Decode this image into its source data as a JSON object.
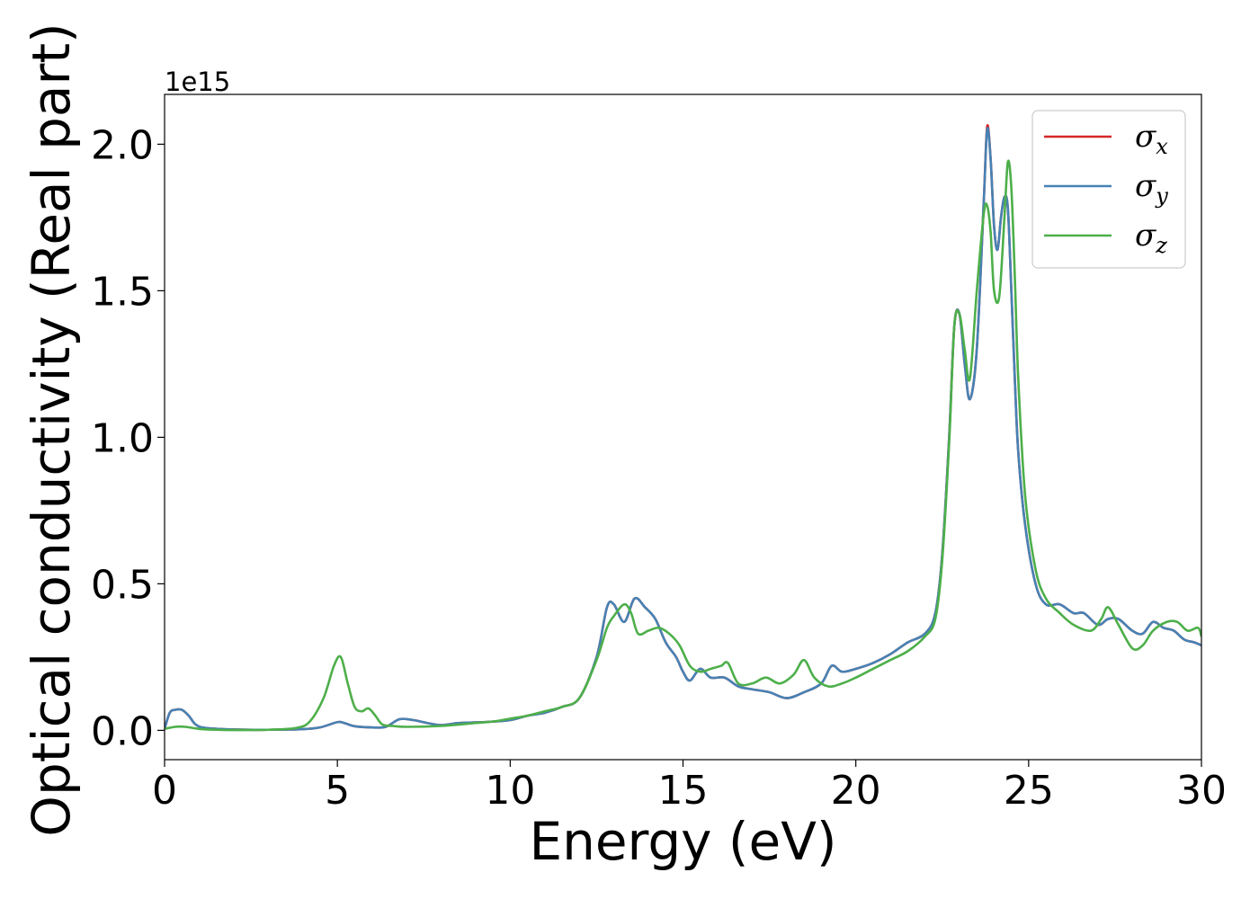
{
  "chart_data": {
    "type": "line",
    "xlabel": "Energy (eV)",
    "ylabel": "Optical conductivity (Real part)",
    "y_offset_text": "1e15",
    "xlim": [
      0,
      30
    ],
    "ylim": [
      -0.1,
      2.17
    ],
    "x_ticks": [
      0,
      5,
      10,
      15,
      20,
      25,
      30
    ],
    "x_tick_labels": [
      "0",
      "5",
      "10",
      "15",
      "20",
      "25",
      "30"
    ],
    "y_ticks": [
      0.0,
      0.5,
      1.0,
      1.5,
      2.0
    ],
    "y_tick_labels": [
      "0.0",
      "0.5",
      "1.0",
      "1.5",
      "2.0"
    ],
    "grid": false,
    "legend_position": "top-right",
    "series": [
      {
        "name": "σx",
        "name_base": "σ",
        "name_sub": "x",
        "color": "#d62728",
        "x": [
          0,
          0.15,
          0.3,
          0.5,
          0.7,
          0.9,
          1.2,
          2,
          3,
          4,
          4.5,
          5.0,
          5.2,
          5.5,
          6.0,
          6.4,
          6.8,
          7.2,
          7.6,
          8,
          8.5,
          9,
          9.5,
          10,
          10.5,
          11,
          11.5,
          12,
          12.5,
          12.8,
          13.0,
          13.3,
          13.6,
          13.9,
          14.2,
          14.5,
          14.8,
          15.0,
          15.2,
          15.5,
          15.8,
          16.2,
          16.6,
          17.0,
          17.5,
          18.0,
          18.5,
          19.0,
          19.3,
          19.6,
          20.0,
          20.5,
          21.0,
          21.5,
          22.0,
          22.3,
          22.5,
          22.7,
          22.85,
          23.0,
          23.15,
          23.3,
          23.5,
          23.7,
          23.8,
          23.9,
          24.0,
          24.1,
          24.2,
          24.3,
          24.4,
          24.5,
          24.6,
          24.7,
          24.9,
          25.2,
          25.5,
          25.9,
          26.3,
          26.6,
          27.0,
          27.3,
          27.6,
          28.0,
          28.3,
          28.6,
          28.9,
          29.2,
          29.5,
          29.8,
          30
        ],
        "y": [
          0.005,
          0.06,
          0.07,
          0.07,
          0.05,
          0.02,
          0.008,
          0.003,
          0.002,
          0.004,
          0.01,
          0.028,
          0.025,
          0.014,
          0.01,
          0.012,
          0.038,
          0.035,
          0.025,
          0.018,
          0.025,
          0.027,
          0.03,
          0.035,
          0.05,
          0.06,
          0.08,
          0.11,
          0.25,
          0.42,
          0.43,
          0.37,
          0.45,
          0.42,
          0.38,
          0.3,
          0.25,
          0.2,
          0.17,
          0.21,
          0.18,
          0.18,
          0.15,
          0.14,
          0.13,
          0.11,
          0.13,
          0.16,
          0.22,
          0.2,
          0.21,
          0.23,
          0.26,
          0.3,
          0.33,
          0.4,
          0.6,
          1.0,
          1.38,
          1.42,
          1.25,
          1.13,
          1.3,
          1.8,
          2.06,
          1.95,
          1.72,
          1.64,
          1.75,
          1.82,
          1.78,
          1.5,
          1.2,
          0.95,
          0.7,
          0.5,
          0.43,
          0.43,
          0.4,
          0.4,
          0.36,
          0.38,
          0.38,
          0.34,
          0.33,
          0.37,
          0.35,
          0.34,
          0.31,
          0.3,
          0.29
        ]
      },
      {
        "name": "σy",
        "name_base": "σ",
        "name_sub": "y",
        "color": "#4682b4",
        "x": [
          0,
          0.15,
          0.3,
          0.5,
          0.7,
          0.9,
          1.2,
          2,
          3,
          4,
          4.5,
          5.0,
          5.2,
          5.5,
          6.0,
          6.4,
          6.8,
          7.2,
          7.6,
          8,
          8.5,
          9,
          9.5,
          10,
          10.5,
          11,
          11.5,
          12,
          12.5,
          12.8,
          13.0,
          13.3,
          13.6,
          13.9,
          14.2,
          14.5,
          14.8,
          15.0,
          15.2,
          15.5,
          15.8,
          16.2,
          16.6,
          17.0,
          17.5,
          18.0,
          18.5,
          19.0,
          19.3,
          19.6,
          20.0,
          20.5,
          21.0,
          21.5,
          22.0,
          22.3,
          22.5,
          22.7,
          22.85,
          23.0,
          23.15,
          23.3,
          23.5,
          23.7,
          23.8,
          23.9,
          24.0,
          24.1,
          24.2,
          24.3,
          24.4,
          24.5,
          24.6,
          24.7,
          24.9,
          25.2,
          25.5,
          25.9,
          26.3,
          26.6,
          27.0,
          27.3,
          27.6,
          28.0,
          28.3,
          28.6,
          28.9,
          29.2,
          29.5,
          29.8,
          30
        ],
        "y": [
          0.005,
          0.06,
          0.07,
          0.07,
          0.05,
          0.02,
          0.008,
          0.003,
          0.002,
          0.004,
          0.01,
          0.028,
          0.025,
          0.014,
          0.01,
          0.012,
          0.038,
          0.035,
          0.025,
          0.018,
          0.025,
          0.027,
          0.03,
          0.035,
          0.05,
          0.06,
          0.08,
          0.11,
          0.25,
          0.42,
          0.43,
          0.37,
          0.45,
          0.42,
          0.38,
          0.3,
          0.25,
          0.2,
          0.17,
          0.21,
          0.18,
          0.18,
          0.15,
          0.14,
          0.13,
          0.11,
          0.13,
          0.16,
          0.22,
          0.2,
          0.21,
          0.23,
          0.26,
          0.3,
          0.33,
          0.4,
          0.6,
          1.0,
          1.38,
          1.42,
          1.25,
          1.13,
          1.3,
          1.8,
          2.05,
          1.95,
          1.72,
          1.64,
          1.75,
          1.82,
          1.78,
          1.5,
          1.2,
          0.95,
          0.7,
          0.5,
          0.43,
          0.43,
          0.4,
          0.4,
          0.36,
          0.38,
          0.38,
          0.34,
          0.33,
          0.37,
          0.35,
          0.34,
          0.31,
          0.3,
          0.29
        ]
      },
      {
        "name": "σz",
        "name_base": "σ",
        "name_sub": "z",
        "color": "#4daf4a",
        "x": [
          0,
          0.3,
          0.6,
          1.0,
          1.5,
          2,
          3,
          3.8,
          4.2,
          4.6,
          4.9,
          5.1,
          5.3,
          5.5,
          5.7,
          5.9,
          6.1,
          6.3,
          6.6,
          7,
          8,
          9,
          9.5,
          10,
          10.5,
          11,
          11.5,
          12,
          12.5,
          12.8,
          13.0,
          13.3,
          13.5,
          13.7,
          14.0,
          14.3,
          14.6,
          14.9,
          15.2,
          15.5,
          15.8,
          16.1,
          16.3,
          16.6,
          17.0,
          17.4,
          17.8,
          18.2,
          18.5,
          18.8,
          19.2,
          19.6,
          20,
          20.5,
          21.0,
          21.5,
          22.0,
          22.3,
          22.5,
          22.7,
          22.85,
          23.0,
          23.15,
          23.3,
          23.5,
          23.7,
          23.8,
          23.9,
          24.0,
          24.15,
          24.3,
          24.4,
          24.5,
          24.6,
          24.7,
          24.9,
          25.2,
          25.5,
          25.9,
          26.3,
          26.8,
          27.1,
          27.3,
          27.6,
          28.0,
          28.3,
          28.6,
          29.0,
          29.3,
          29.6,
          29.9,
          30
        ],
        "y": [
          0.005,
          0.012,
          0.012,
          0.005,
          0.002,
          0.001,
          0.002,
          0.008,
          0.03,
          0.11,
          0.22,
          0.25,
          0.16,
          0.08,
          0.065,
          0.075,
          0.05,
          0.02,
          0.015,
          0.012,
          0.015,
          0.025,
          0.03,
          0.04,
          0.05,
          0.065,
          0.08,
          0.11,
          0.24,
          0.35,
          0.39,
          0.43,
          0.4,
          0.33,
          0.34,
          0.35,
          0.33,
          0.29,
          0.22,
          0.2,
          0.21,
          0.22,
          0.23,
          0.16,
          0.16,
          0.18,
          0.16,
          0.19,
          0.24,
          0.18,
          0.15,
          0.16,
          0.18,
          0.21,
          0.24,
          0.27,
          0.32,
          0.38,
          0.58,
          0.98,
          1.38,
          1.42,
          1.3,
          1.2,
          1.5,
          1.76,
          1.79,
          1.7,
          1.5,
          1.48,
          1.75,
          1.94,
          1.85,
          1.55,
          1.2,
          0.8,
          0.55,
          0.45,
          0.4,
          0.36,
          0.34,
          0.38,
          0.42,
          0.36,
          0.28,
          0.29,
          0.34,
          0.37,
          0.37,
          0.34,
          0.35,
          0.32
        ]
      }
    ]
  }
}
